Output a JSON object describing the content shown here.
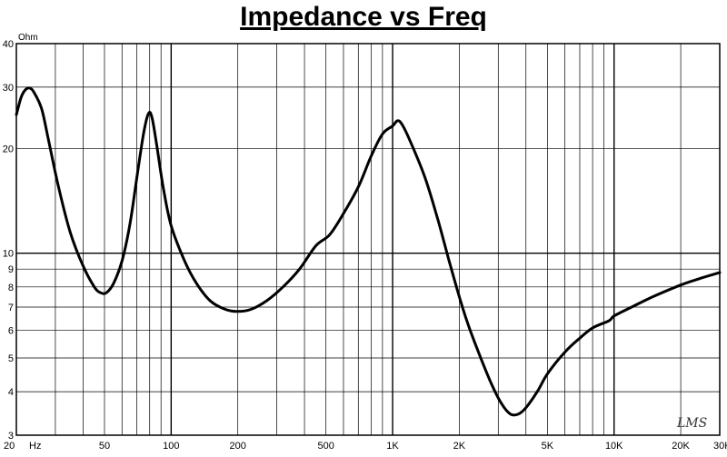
{
  "chart_data": {
    "type": "line",
    "title": "Impedance vs Freq",
    "y_unit_label": "Ohm",
    "x_unit_label": "Hz",
    "x_scale": "log",
    "y_scale": "log",
    "xlim": [
      20,
      30000
    ],
    "ylim": [
      3,
      40
    ],
    "grid": true,
    "x_ticks": [
      {
        "value": 20,
        "label": "20"
      },
      {
        "value": 50,
        "label": "50"
      },
      {
        "value": 100,
        "label": "100"
      },
      {
        "value": 200,
        "label": "200"
      },
      {
        "value": 500,
        "label": "500"
      },
      {
        "value": 1000,
        "label": "1K"
      },
      {
        "value": 2000,
        "label": "2K"
      },
      {
        "value": 5000,
        "label": "5K"
      },
      {
        "value": 10000,
        "label": "10K"
      },
      {
        "value": 20000,
        "label": "20K"
      },
      {
        "value": 30000,
        "label": "30K"
      }
    ],
    "y_ticks": [
      {
        "value": 3,
        "label": "3"
      },
      {
        "value": 4,
        "label": "4"
      },
      {
        "value": 5,
        "label": "5"
      },
      {
        "value": 6,
        "label": "6"
      },
      {
        "value": 7,
        "label": "7"
      },
      {
        "value": 8,
        "label": "8"
      },
      {
        "value": 9,
        "label": "9"
      },
      {
        "value": 10,
        "label": "10"
      },
      {
        "value": 20,
        "label": "20"
      },
      {
        "value": 30,
        "label": "30"
      },
      {
        "value": 40,
        "label": "40"
      }
    ],
    "series": [
      {
        "color": "#000000",
        "points": [
          [
            20,
            25
          ],
          [
            21,
            28
          ],
          [
            22,
            29.5
          ],
          [
            23,
            29.8
          ],
          [
            24,
            29
          ],
          [
            26,
            26
          ],
          [
            28,
            21
          ],
          [
            31,
            15.5
          ],
          [
            35,
            11.5
          ],
          [
            40,
            9.2
          ],
          [
            45,
            8.0
          ],
          [
            48,
            7.7
          ],
          [
            51,
            7.7
          ],
          [
            55,
            8.2
          ],
          [
            60,
            9.5
          ],
          [
            65,
            12
          ],
          [
            70,
            16.5
          ],
          [
            75,
            22
          ],
          [
            79,
            25.2
          ],
          [
            82,
            24.5
          ],
          [
            86,
            20.5
          ],
          [
            92,
            15.5
          ],
          [
            100,
            12
          ],
          [
            115,
            9.5
          ],
          [
            130,
            8.2
          ],
          [
            150,
            7.3
          ],
          [
            175,
            6.9
          ],
          [
            200,
            6.8
          ],
          [
            230,
            6.9
          ],
          [
            270,
            7.3
          ],
          [
            320,
            8.0
          ],
          [
            380,
            9.0
          ],
          [
            450,
            10.5
          ],
          [
            520,
            11.3
          ],
          [
            600,
            13
          ],
          [
            700,
            15.5
          ],
          [
            800,
            19
          ],
          [
            900,
            22
          ],
          [
            1000,
            23.2
          ],
          [
            1050,
            24
          ],
          [
            1100,
            23.5
          ],
          [
            1200,
            21
          ],
          [
            1400,
            16.5
          ],
          [
            1600,
            12.5
          ],
          [
            1800,
            9.5
          ],
          [
            2000,
            7.5
          ],
          [
            2200,
            6.2
          ],
          [
            2500,
            5.0
          ],
          [
            2800,
            4.2
          ],
          [
            3100,
            3.7
          ],
          [
            3400,
            3.45
          ],
          [
            3700,
            3.45
          ],
          [
            4000,
            3.6
          ],
          [
            4500,
            4.0
          ],
          [
            5000,
            4.5
          ],
          [
            6000,
            5.2
          ],
          [
            7000,
            5.7
          ],
          [
            8000,
            6.1
          ],
          [
            9500,
            6.4
          ],
          [
            10000,
            6.6
          ],
          [
            12000,
            7.0
          ],
          [
            15000,
            7.5
          ],
          [
            20000,
            8.1
          ],
          [
            25000,
            8.5
          ],
          [
            30000,
            8.8
          ]
        ]
      }
    ],
    "watermark": "LMS"
  }
}
